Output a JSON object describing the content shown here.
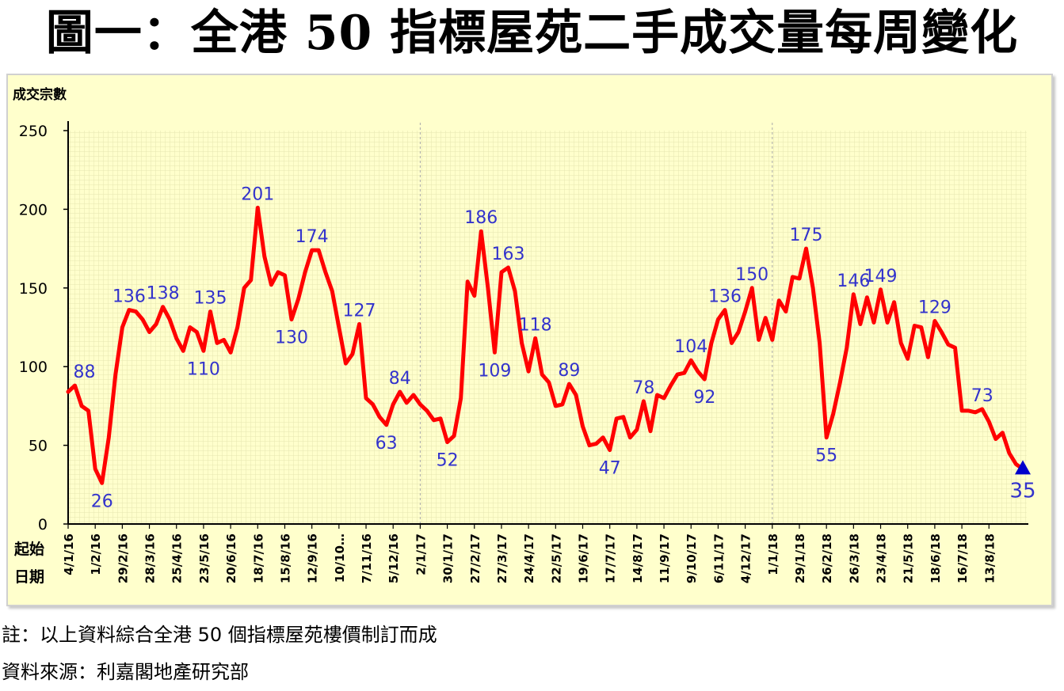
{
  "title": "圖一：全港 50 指標屋苑二手成交量每周變化",
  "notes": {
    "note": "註：以上資料綜合全港 50 個指標屋苑樓價制訂而成",
    "source": "資料來源：利嘉閣地產研究部"
  },
  "colors": {
    "line": "#ff0000",
    "label": "#3333cc",
    "marker": "#0000cc",
    "background": "#ffffcc",
    "grid": "#aaaaaa"
  },
  "chart_data": {
    "type": "line",
    "ylabel": "成交宗數",
    "xlabel_lines": [
      "起始",
      "日期"
    ],
    "ylim": [
      0,
      250
    ],
    "yticks": [
      0,
      50,
      100,
      150,
      200,
      250
    ],
    "x_tick_labels": [
      "4/1/16",
      "1/2/16",
      "29/2/16",
      "28/3/16",
      "25/4/16",
      "23/5/16",
      "20/6/16",
      "18/7/16",
      "15/8/16",
      "12/9/16",
      "10/10…",
      "7/11/16",
      "5/12/16",
      "2/1/17",
      "30/1/17",
      "27/2/17",
      "27/3/17",
      "24/4/17",
      "22/5/17",
      "19/6/17",
      "17/7/17",
      "14/8/17",
      "11/9/17",
      "9/10/17",
      "6/11/17",
      "4/12/17",
      "1/1/18",
      "29/1/18",
      "26/2/18",
      "26/3/18",
      "23/4/18",
      "21/5/18",
      "18/6/18",
      "16/7/18",
      "13/8/18"
    ],
    "year_dividers": [
      52,
      104
    ],
    "series": [
      {
        "values": [
          84,
          88,
          75,
          72,
          35,
          26,
          55,
          95,
          125,
          136,
          135,
          130,
          122,
          127,
          138,
          130,
          118,
          110,
          125,
          122,
          110,
          135,
          115,
          117,
          109,
          125,
          150,
          155,
          201,
          170,
          152,
          160,
          158,
          130,
          143,
          160,
          174,
          174,
          160,
          148,
          125,
          102,
          108,
          127,
          80,
          76,
          68,
          63,
          76,
          84,
          77,
          82,
          76,
          72,
          66,
          67,
          52,
          56,
          80,
          154,
          145,
          186,
          150,
          109,
          160,
          163,
          148,
          115,
          97,
          118,
          95,
          90,
          75,
          76,
          89,
          82,
          62,
          50,
          51,
          55,
          47,
          67,
          68,
          55,
          60,
          78,
          59,
          82,
          80,
          88,
          95,
          96,
          104,
          97,
          92,
          115,
          130,
          136,
          115,
          122,
          135,
          150,
          117,
          131,
          117,
          142,
          135,
          157,
          156,
          175,
          150,
          115,
          55,
          70,
          90,
          112,
          146,
          127,
          144,
          128,
          149,
          128,
          141,
          115,
          105,
          126,
          125,
          106,
          129,
          122,
          114,
          112,
          72,
          72,
          71,
          73,
          65,
          54,
          58,
          45,
          38,
          35
        ]
      }
    ],
    "data_labels": [
      {
        "index": 1,
        "value": "88"
      },
      {
        "index": 5,
        "value": "26"
      },
      {
        "index": 9,
        "value": "136"
      },
      {
        "index": 14,
        "value": "138"
      },
      {
        "index": 20,
        "value": "110"
      },
      {
        "index": 21,
        "value": "135"
      },
      {
        "index": 28,
        "value": "201"
      },
      {
        "index": 33,
        "value": "130"
      },
      {
        "index": 36,
        "value": "174"
      },
      {
        "index": 43,
        "value": "127"
      },
      {
        "index": 47,
        "value": "63"
      },
      {
        "index": 49,
        "value": "84"
      },
      {
        "index": 56,
        "value": "52"
      },
      {
        "index": 61,
        "value": "186"
      },
      {
        "index": 63,
        "value": "109"
      },
      {
        "index": 65,
        "value": "163"
      },
      {
        "index": 69,
        "value": "118"
      },
      {
        "index": 74,
        "value": "89"
      },
      {
        "index": 80,
        "value": "47"
      },
      {
        "index": 85,
        "value": "78"
      },
      {
        "index": 92,
        "value": "104"
      },
      {
        "index": 94,
        "value": "92"
      },
      {
        "index": 97,
        "value": "136"
      },
      {
        "index": 101,
        "value": "150"
      },
      {
        "index": 109,
        "value": "175"
      },
      {
        "index": 112,
        "value": "55"
      },
      {
        "index": 116,
        "value": "146"
      },
      {
        "index": 120,
        "value": "149"
      },
      {
        "index": 128,
        "value": "129"
      },
      {
        "index": 135,
        "value": "73"
      },
      {
        "index": 141,
        "value": "35"
      }
    ],
    "grid": true
  }
}
